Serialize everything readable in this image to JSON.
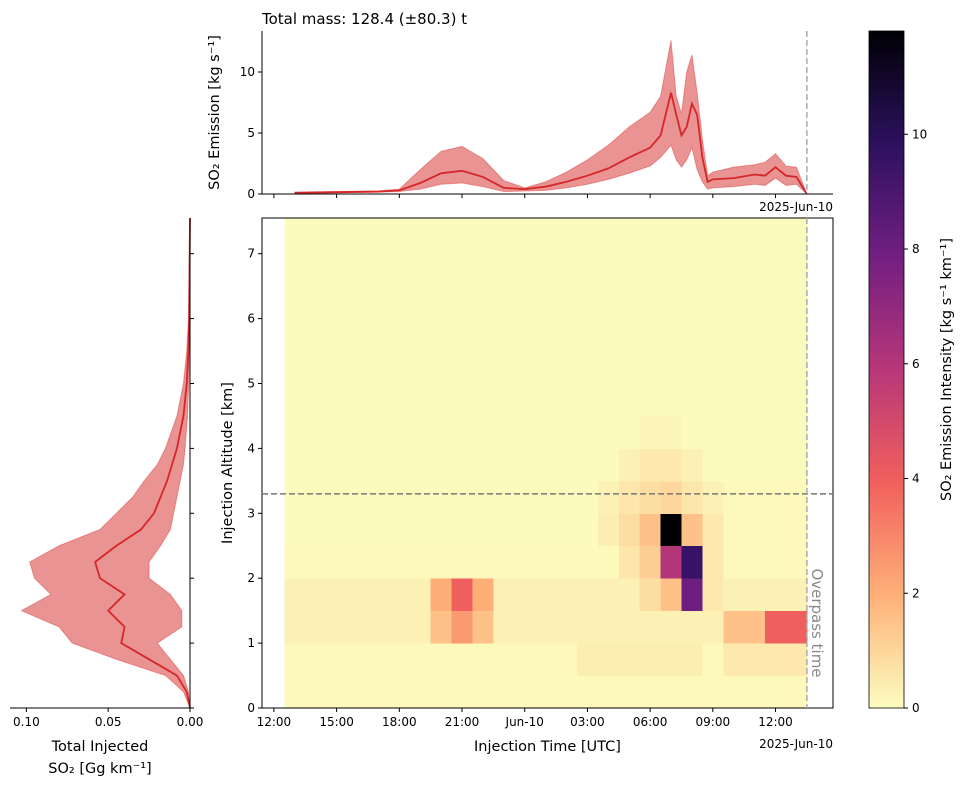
{
  "chart_data": [
    {
      "type": "line",
      "title": "Total mass: 128.4 (±80.3) t",
      "ylabel": "SO₂ Emission [kg s⁻¹]",
      "x_offset_label": "2025-Jun-10",
      "color": "#d62728",
      "x": [
        13,
        15,
        17,
        18,
        19,
        20,
        21,
        22,
        23,
        24,
        25,
        26,
        27,
        28,
        29,
        30,
        30.5,
        31,
        31.25,
        31.5,
        31.75,
        32,
        32.25,
        32.5,
        32.75,
        33,
        34,
        35,
        35.5,
        36,
        36.5,
        37,
        37.5
      ],
      "values": [
        0.1,
        0.15,
        0.2,
        0.3,
        0.9,
        1.7,
        1.9,
        1.4,
        0.5,
        0.4,
        0.6,
        1.0,
        1.5,
        2.1,
        3.0,
        3.8,
        4.8,
        8.3,
        6.5,
        4.8,
        5.5,
        7.4,
        6.5,
        3.0,
        1.0,
        1.2,
        1.3,
        1.6,
        1.5,
        2.2,
        1.5,
        1.4,
        0.0
      ],
      "upper": [
        0.15,
        0.2,
        0.25,
        0.4,
        2.0,
        3.5,
        3.9,
        2.9,
        1.1,
        0.5,
        1.0,
        1.8,
        2.8,
        4.0,
        5.5,
        6.7,
        8.0,
        12.6,
        8.0,
        6.6,
        10.0,
        11.4,
        8.3,
        4.5,
        1.5,
        1.8,
        2.2,
        2.4,
        2.6,
        3.3,
        2.3,
        2.2,
        0.0
      ],
      "lower": [
        0.05,
        0.1,
        0.15,
        0.2,
        0.4,
        0.8,
        0.9,
        0.6,
        0.2,
        0.25,
        0.3,
        0.5,
        0.8,
        1.2,
        1.7,
        2.3,
        3.0,
        4.0,
        2.8,
        2.2,
        2.8,
        3.8,
        2.0,
        1.0,
        0.4,
        0.5,
        0.6,
        0.8,
        0.7,
        1.3,
        0.7,
        0.8,
        0.0
      ],
      "xlim": [
        11.43,
        38.75
      ],
      "xticks": [
        12,
        15,
        18,
        21,
        24,
        27,
        30,
        33,
        36
      ],
      "ylim": [
        0,
        13.36
      ],
      "yticks": [
        0,
        5,
        10
      ]
    },
    {
      "type": "profile",
      "xlabel": [
        "Total Injected",
        "SO₂ [Gg km⁻¹]"
      ],
      "color": "#d62728",
      "altitude": [
        0,
        0.25,
        0.5,
        0.75,
        1.0,
        1.25,
        1.5,
        1.75,
        2.0,
        2.25,
        2.5,
        2.75,
        3.0,
        3.25,
        3.5,
        3.75,
        4.0,
        4.5,
        5.0,
        5.5,
        6.0,
        7.0,
        7.55
      ],
      "values": [
        0,
        0.002,
        0.008,
        0.025,
        0.042,
        0.04,
        0.05,
        0.04,
        0.055,
        0.058,
        0.045,
        0.03,
        0.022,
        0.018,
        0.014,
        0.011,
        0.008,
        0.004,
        0.002,
        0.001,
        0.0005,
        0.0002,
        0
      ],
      "lower": [
        0,
        0.001,
        0.004,
        0.012,
        0.02,
        0.005,
        0.005,
        0.012,
        0.025,
        0.025,
        0.018,
        0.012,
        0.01,
        0.008,
        0.006,
        0.004,
        0.003,
        0.0015,
        0.0008,
        0.0004,
        0.0002,
        0.0001,
        0
      ],
      "upper": [
        0,
        0.004,
        0.015,
        0.045,
        0.072,
        0.08,
        0.103,
        0.085,
        0.095,
        0.098,
        0.08,
        0.055,
        0.045,
        0.035,
        0.028,
        0.02,
        0.015,
        0.008,
        0.004,
        0.002,
        0.001,
        0.0004,
        0
      ],
      "xlim": [
        0.11,
        0
      ],
      "xticks": [
        {
          "value": 0.1,
          "label": "0.10"
        },
        0.05,
        {
          "value": 0,
          "label": "0.00"
        }
      ]
    },
    {
      "type": "heatmap",
      "xlabel": "Injection Time [UTC]",
      "ylabel": "Injection Altitude [km]",
      "x_offset_label": "2025-Jun-10",
      "colorbar_label": "SO₂ Emission Intensity [kg s⁻¹ km⁻¹]",
      "annotation": "Overpass time",
      "overpass_time": 37.5,
      "reference_altitude": 3.3,
      "colormap": [
        "#fcfdbf",
        "#feb078",
        "#f1605d",
        "#b73779",
        "#721f81",
        "#2c115f",
        "#000004"
      ],
      "clim": [
        0,
        11.8
      ],
      "cticks": [
        0,
        2,
        4,
        6,
        8,
        10
      ],
      "time_bins": [
        12.5,
        13.5,
        14.5,
        15.5,
        16.5,
        17.5,
        18.5,
        19.5,
        20.5,
        21.5,
        22.5,
        23.5,
        24.5,
        25.5,
        26.5,
        27.5,
        28.5,
        29.5,
        30.5,
        31.5,
        32.5,
        33.5,
        34.5,
        35.5,
        36.5,
        37.5
      ],
      "altitude_bins": [
        0,
        0.5,
        1,
        1.5,
        2,
        2.5,
        3,
        3.5,
        4,
        4.5,
        5,
        5.5,
        6,
        6.5,
        7,
        7.55
      ],
      "values": [
        [
          0.1,
          0.1,
          0.1,
          0.1,
          0.1,
          0.1,
          0.1,
          0.1,
          0.1,
          0.1,
          0.1,
          0.1,
          0.1,
          0.1,
          0.1,
          0.1,
          0.1,
          0.1,
          0.1,
          0.1,
          0.1,
          0.1,
          0.1,
          0.1,
          0.1
        ],
        [
          0.1,
          0.1,
          0.1,
          0.1,
          0.1,
          0.1,
          0.1,
          0.1,
          0.1,
          0.1,
          0.1,
          0.1,
          0.1,
          0.1,
          0.4,
          0.4,
          0.4,
          0.4,
          0.4,
          0.4,
          0.1,
          0.5,
          0.5,
          0.5,
          0.5
        ],
        [
          0.3,
          0.3,
          0.3,
          0.3,
          0.3,
          0.3,
          0.3,
          1.5,
          2.5,
          1.5,
          0.3,
          0.3,
          0.3,
          0.3,
          0.3,
          0.3,
          0.3,
          0.3,
          0.3,
          0.3,
          0.3,
          1.5,
          1.5,
          4,
          4
        ],
        [
          0.3,
          0.3,
          0.3,
          0.3,
          0.3,
          0.3,
          0.3,
          2,
          4,
          2,
          0.3,
          0.3,
          0.3,
          0.3,
          0.3,
          0.3,
          0.3,
          0.8,
          1.5,
          8,
          0.5,
          0.3,
          0.3,
          0.3,
          0.3
        ],
        [
          0.1,
          0.1,
          0.1,
          0.1,
          0.1,
          0.1,
          0.1,
          0.1,
          0.1,
          0.1,
          0.1,
          0.1,
          0.1,
          0.1,
          0.1,
          0.1,
          0.6,
          1.2,
          6,
          9.5,
          0.5,
          0.1,
          0.1,
          0.1,
          0.1
        ],
        [
          0.05,
          0.05,
          0.05,
          0.05,
          0.05,
          0.05,
          0.05,
          0.05,
          0.05,
          0.05,
          0.05,
          0.05,
          0.05,
          0.05,
          0.05,
          0.4,
          0.8,
          1.5,
          11.8,
          1.5,
          0.5,
          0.1,
          0.1,
          0.1,
          0.1
        ],
        [
          0.05,
          0.05,
          0.05,
          0.05,
          0.05,
          0.05,
          0.05,
          0.05,
          0.05,
          0.05,
          0.05,
          0.05,
          0.05,
          0.05,
          0.05,
          0.3,
          0.6,
          0.8,
          1,
          0.6,
          0.3,
          0.1,
          0.1,
          0.1,
          0.1
        ],
        [
          0.05,
          0.05,
          0.05,
          0.05,
          0.05,
          0.05,
          0.05,
          0.05,
          0.05,
          0.05,
          0.05,
          0.05,
          0.05,
          0.05,
          0.05,
          0.05,
          0.3,
          0.5,
          0.5,
          0.3,
          0.05,
          0.05,
          0.05,
          0.05,
          0.05
        ],
        [
          0.05,
          0.05,
          0.05,
          0.05,
          0.05,
          0.05,
          0.05,
          0.05,
          0.05,
          0.05,
          0.05,
          0.05,
          0.05,
          0.05,
          0.05,
          0.05,
          0.05,
          0.2,
          0.2,
          0.05,
          0.05,
          0.05,
          0.05,
          0.05,
          0.05
        ],
        [
          0.05,
          0.05,
          0.05,
          0.05,
          0.05,
          0.05,
          0.05,
          0.05,
          0.05,
          0.05,
          0.05,
          0.05,
          0.05,
          0.05,
          0.05,
          0.05,
          0.05,
          0.05,
          0.05,
          0.05,
          0.05,
          0.05,
          0.05,
          0.05,
          0.05
        ],
        [
          0.05,
          0.05,
          0.05,
          0.05,
          0.05,
          0.05,
          0.05,
          0.05,
          0.05,
          0.05,
          0.05,
          0.05,
          0.05,
          0.05,
          0.05,
          0.05,
          0.05,
          0.05,
          0.05,
          0.05,
          0.05,
          0.05,
          0.05,
          0.05,
          0.05
        ],
        [
          0.05,
          0.05,
          0.05,
          0.05,
          0.05,
          0.05,
          0.05,
          0.05,
          0.05,
          0.05,
          0.05,
          0.05,
          0.05,
          0.05,
          0.05,
          0.05,
          0.05,
          0.05,
          0.05,
          0.05,
          0.05,
          0.05,
          0.05,
          0.05,
          0.05
        ],
        [
          0.05,
          0.05,
          0.05,
          0.05,
          0.05,
          0.05,
          0.05,
          0.05,
          0.05,
          0.05,
          0.05,
          0.05,
          0.05,
          0.05,
          0.05,
          0.05,
          0.05,
          0.05,
          0.05,
          0.05,
          0.05,
          0.05,
          0.05,
          0.05,
          0.05
        ],
        [
          0.05,
          0.05,
          0.05,
          0.05,
          0.05,
          0.05,
          0.05,
          0.05,
          0.05,
          0.05,
          0.05,
          0.05,
          0.05,
          0.05,
          0.05,
          0.05,
          0.05,
          0.05,
          0.05,
          0.05,
          0.05,
          0.05,
          0.05,
          0.05,
          0.05
        ],
        [
          0.05,
          0.05,
          0.05,
          0.05,
          0.05,
          0.05,
          0.05,
          0.05,
          0.05,
          0.05,
          0.05,
          0.05,
          0.05,
          0.05,
          0.05,
          0.05,
          0.05,
          0.05,
          0.05,
          0.05,
          0.05,
          0.05,
          0.05,
          0.05,
          0.05
        ]
      ],
      "xlim": [
        11.43,
        38.75
      ],
      "xticks": [
        {
          "value": 12,
          "label": "12:00"
        },
        {
          "value": 15,
          "label": "15:00"
        },
        {
          "value": 18,
          "label": "18:00"
        },
        {
          "value": 21,
          "label": "21:00"
        },
        {
          "value": 24,
          "label": "Jun-10"
        },
        {
          "value": 27,
          "label": "03:00"
        },
        {
          "value": 30,
          "label": "06:00"
        },
        {
          "value": 33,
          "label": "09:00"
        },
        {
          "value": 36,
          "label": "12:00"
        }
      ],
      "ylim": [
        0,
        7.55
      ],
      "yticks": [
        0,
        1,
        2,
        3,
        4,
        5,
        6,
        7
      ]
    }
  ]
}
